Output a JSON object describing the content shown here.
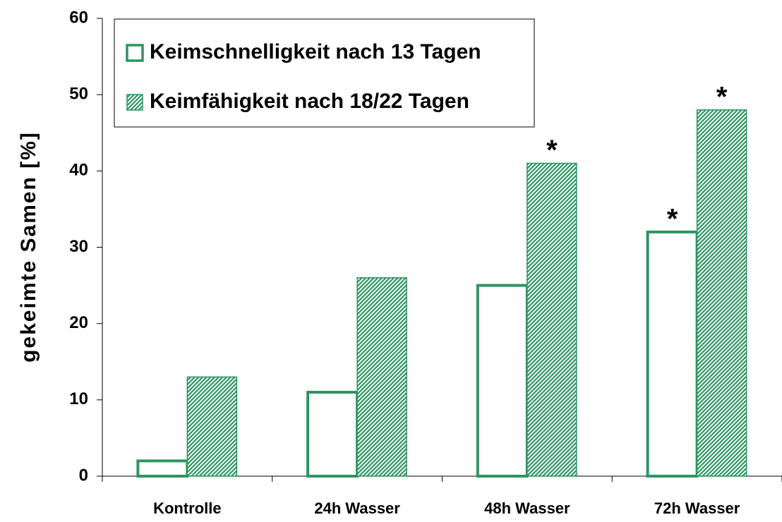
{
  "chart_data": {
    "type": "bar",
    "y_label": "gekeimte Samen [%]",
    "categories": [
      "Kontrolle",
      "24h Wasser",
      "48h Wasser",
      "72h Wasser"
    ],
    "series": [
      {
        "name": "Keimschnelligkeit nach 13 Tagen",
        "color": "#2e9460",
        "style": "outline",
        "values": [
          2,
          11,
          25,
          32
        ],
        "significance": [
          null,
          null,
          null,
          "*"
        ]
      },
      {
        "name": "Keimfähigkeit nach 18/22 Tagen",
        "color": "#2e9460",
        "style": "hatched",
        "values": [
          13,
          26,
          41,
          48
        ],
        "significance": [
          null,
          null,
          "*",
          "*"
        ]
      }
    ],
    "ylim": [
      0,
      60
    ],
    "yticks": [
      0,
      10,
      20,
      30,
      40,
      50,
      60
    ],
    "grid": false,
    "legend": "top-left"
  }
}
